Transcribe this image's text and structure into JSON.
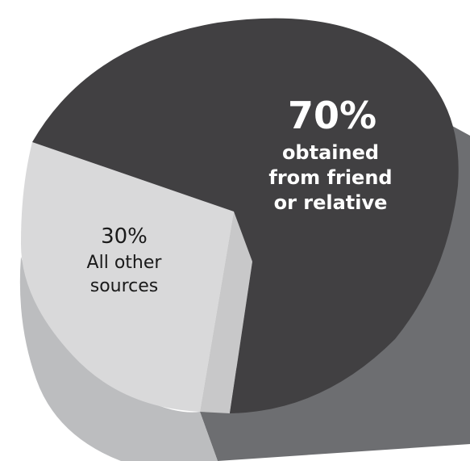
{
  "chart_data": {
    "type": "pie",
    "style": "3d",
    "slices": [
      {
        "value": 70,
        "percent_label": "70%",
        "label_lines": [
          "obtained",
          "from friend",
          "or relative"
        ],
        "color": "#414042",
        "side_color": "#6d6e71"
      },
      {
        "value": 30,
        "percent_label": "30%",
        "label_lines": [
          "All other",
          "sources"
        ],
        "color": "#d9d9da",
        "side_color": "#bcbdbf"
      }
    ]
  }
}
